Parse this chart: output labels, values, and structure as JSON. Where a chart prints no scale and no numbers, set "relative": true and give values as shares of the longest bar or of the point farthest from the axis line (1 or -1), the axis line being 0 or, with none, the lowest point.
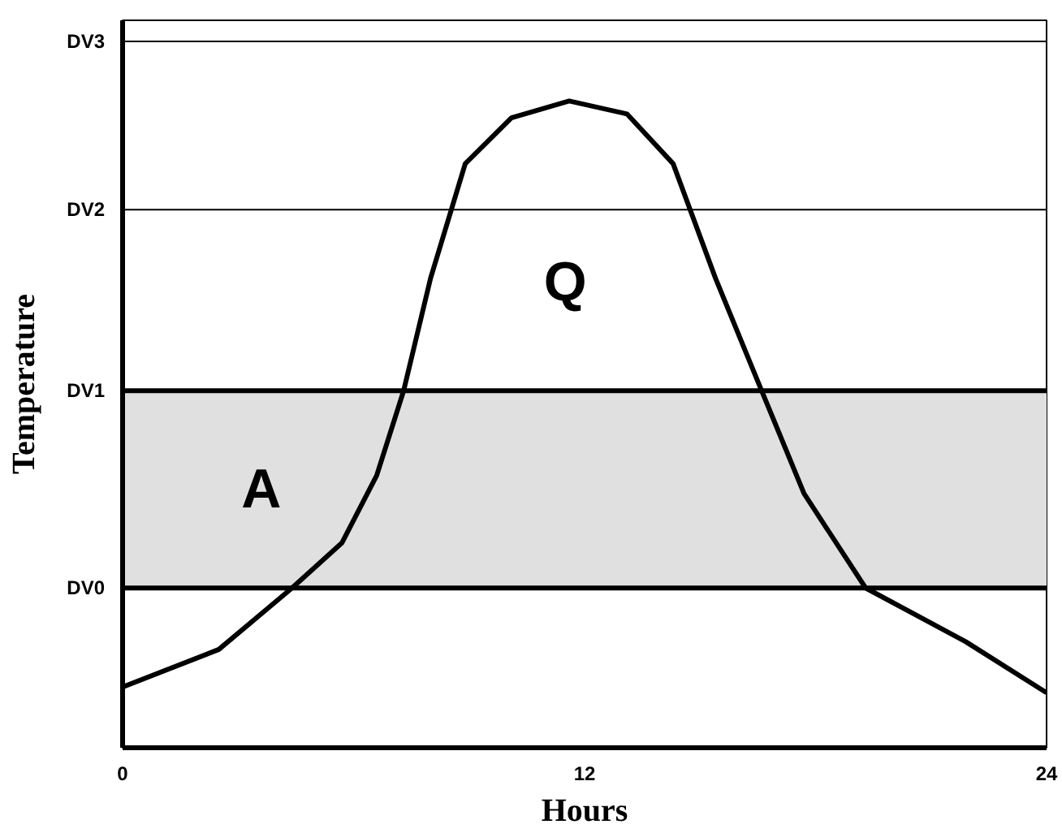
{
  "chart_data": {
    "type": "line",
    "relative": true,
    "xlabel": "Hours",
    "ylabel": "Temperature",
    "x": [
      0,
      2.5,
      4.4,
      5.7,
      6.6,
      7.3,
      8,
      8.9,
      10.1,
      11.6,
      13.1,
      14.3,
      15.4,
      16.6,
      17.7,
      19.3,
      21.9,
      24
    ],
    "series": [
      {
        "color": "#000000",
        "values": [
          0.094,
          0.152,
          0.247,
          0.317,
          0.421,
          0.552,
          0.726,
          0.903,
          0.974,
          1.0,
          0.98,
          0.903,
          0.726,
          0.552,
          0.393,
          0.247,
          0.164,
          0.085
        ]
      }
    ],
    "xlim": [
      0,
      24
    ],
    "xticks": [
      0,
      12,
      24
    ],
    "grid": false,
    "marker": "none",
    "line_style": "solid",
    "ref_lines": [
      {
        "axis": "y",
        "value": 0.247,
        "label": "DV0",
        "color": "#000000"
      },
      {
        "axis": "y",
        "value": 0.552,
        "label": "DV1",
        "color": "#000000"
      },
      {
        "axis": "y",
        "value": 0.832,
        "label": "DV2",
        "color": "#000000"
      },
      {
        "axis": "y",
        "value": 1.092,
        "label": "DV3",
        "color": "#000000"
      }
    ],
    "bands": [
      {
        "axis": "y",
        "from": 0.247,
        "to": 0.552,
        "label": "A",
        "color": "#e0e0e0"
      }
    ],
    "annotations": [
      "Q"
    ]
  }
}
